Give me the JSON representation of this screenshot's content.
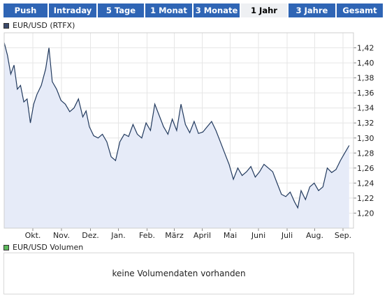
{
  "tabs": [
    {
      "label": "Push",
      "active": false
    },
    {
      "label": "Intraday",
      "active": false
    },
    {
      "label": "5 Tage",
      "active": false
    },
    {
      "label": "1 Monat",
      "active": false
    },
    {
      "label": "3 Monate",
      "active": false
    },
    {
      "label": "1 Jahr",
      "active": true
    },
    {
      "label": "3 Jahre",
      "active": false
    },
    {
      "label": "Gesamt",
      "active": false
    }
  ],
  "colors": {
    "tab_bg": "#2f65b5",
    "tab_active_bg": "#eef0f3",
    "line": "#223a5e",
    "area": "#e6ebf8",
    "price_swatch": "#3b4a6b",
    "volume_swatch": "#5cb85c"
  },
  "price_legend": "EUR/USD (RTFX)",
  "volume_legend": "EUR/USD Volumen",
  "volume_message": "keine Volumendaten vorhanden",
  "chart_data": {
    "type": "area",
    "title": "EUR/USD (RTFX)",
    "xlabel": "",
    "ylabel": "",
    "ylim": [
      1.18,
      1.44
    ],
    "y_ticks": [
      "1,20",
      "1,22",
      "1,24",
      "1,26",
      "1,28",
      "1,30",
      "1,32",
      "1,34",
      "1,36",
      "1,38",
      "1,40",
      "1,42"
    ],
    "x_ticks": [
      "Okt.",
      "Nov.",
      "Dez.",
      "Jan.",
      "Feb.",
      "März",
      "April",
      "Mai",
      "Juni",
      "Juli",
      "Aug.",
      "Sep."
    ],
    "grid": true,
    "series": [
      {
        "name": "EUR/USD",
        "points": [
          [
            0,
            1.427
          ],
          [
            1.5,
            1.41
          ],
          [
            3,
            1.385
          ],
          [
            4.5,
            1.397
          ],
          [
            6,
            1.365
          ],
          [
            7.5,
            1.37
          ],
          [
            9,
            1.348
          ],
          [
            10.5,
            1.352
          ],
          [
            12,
            1.32
          ],
          [
            13.5,
            1.345
          ],
          [
            15,
            1.358
          ],
          [
            17,
            1.37
          ],
          [
            19,
            1.392
          ],
          [
            20.5,
            1.42
          ],
          [
            22,
            1.375
          ],
          [
            24,
            1.365
          ],
          [
            26,
            1.35
          ],
          [
            28,
            1.345
          ],
          [
            30,
            1.335
          ],
          [
            32,
            1.34
          ],
          [
            34,
            1.352
          ],
          [
            36,
            1.328
          ],
          [
            37.5,
            1.336
          ],
          [
            39,
            1.315
          ],
          [
            41,
            1.303
          ],
          [
            43,
            1.3
          ],
          [
            45,
            1.305
          ],
          [
            47,
            1.295
          ],
          [
            49,
            1.275
          ],
          [
            51,
            1.27
          ],
          [
            53,
            1.295
          ],
          [
            55,
            1.305
          ],
          [
            57,
            1.302
          ],
          [
            59,
            1.318
          ],
          [
            61,
            1.305
          ],
          [
            63,
            1.3
          ],
          [
            65,
            1.32
          ],
          [
            67,
            1.31
          ],
          [
            69,
            1.345
          ],
          [
            71,
            1.33
          ],
          [
            73,
            1.315
          ],
          [
            75,
            1.305
          ],
          [
            77,
            1.325
          ],
          [
            79,
            1.31
          ],
          [
            81,
            1.345
          ],
          [
            83,
            1.318
          ],
          [
            85,
            1.307
          ],
          [
            87,
            1.322
          ],
          [
            89,
            1.306
          ],
          [
            91,
            1.308
          ],
          [
            93,
            1.315
          ],
          [
            95,
            1.322
          ],
          [
            97,
            1.31
          ],
          [
            99,
            1.295
          ],
          [
            101,
            1.28
          ],
          [
            103,
            1.265
          ],
          [
            105,
            1.245
          ],
          [
            107,
            1.26
          ],
          [
            109,
            1.25
          ],
          [
            111,
            1.255
          ],
          [
            113,
            1.262
          ],
          [
            115,
            1.248
          ],
          [
            117,
            1.255
          ],
          [
            119,
            1.265
          ],
          [
            121,
            1.26
          ],
          [
            123,
            1.255
          ],
          [
            125,
            1.24
          ],
          [
            127,
            1.225
          ],
          [
            129,
            1.222
          ],
          [
            131,
            1.228
          ],
          [
            133,
            1.215
          ],
          [
            134.5,
            1.207
          ],
          [
            136,
            1.23
          ],
          [
            138,
            1.218
          ],
          [
            140,
            1.235
          ],
          [
            142,
            1.24
          ],
          [
            144,
            1.23
          ],
          [
            146,
            1.235
          ],
          [
            148,
            1.26
          ],
          [
            150,
            1.254
          ],
          [
            152,
            1.258
          ],
          [
            154,
            1.27
          ],
          [
            156,
            1.28
          ],
          [
            158,
            1.29
          ]
        ]
      }
    ]
  }
}
